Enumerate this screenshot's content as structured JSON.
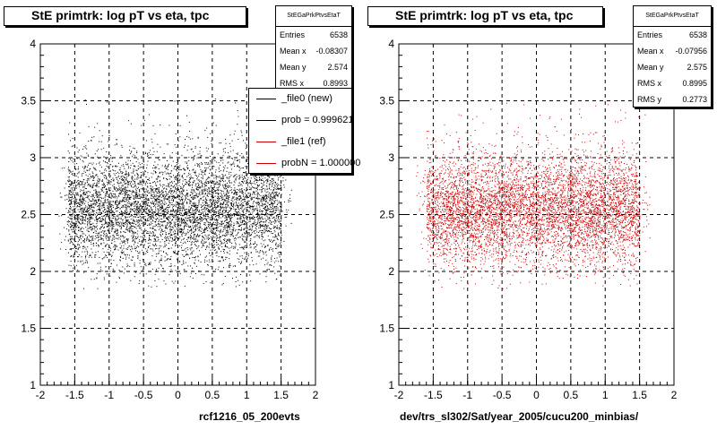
{
  "chart_data": [
    {
      "type": "scatter",
      "title": "StE primtrk: log pT vs eta, tpc",
      "xlabel": "rcf1216_05_200evts",
      "ylabel": "",
      "xlim": [
        -2,
        2
      ],
      "ylim": [
        1,
        4
      ],
      "xticks": [
        "-2",
        "-1.5",
        "-1",
        "-0.5",
        "0",
        "0.5",
        "1",
        "1.5",
        "2"
      ],
      "yticks": [
        "1",
        "1.5",
        "2",
        "2.5",
        "3",
        "3.5",
        "4"
      ],
      "grid": true,
      "color": "#000000",
      "point_cloud": {
        "x_range": [
          -1.75,
          1.65
        ],
        "core_x_range": [
          -1.6,
          1.5
        ],
        "y_core_mean": 2.55,
        "y_spread": 0.35,
        "count": 6538
      },
      "stats": {
        "name": "StEGaPrkPtvsEtaT",
        "entries_label": "Entries",
        "entries": "6538",
        "meanx_label": "Mean x",
        "meanx": "-0.08307",
        "meany_label": "Mean y",
        "meany": "2.574",
        "rmsx_label": "RMS x",
        "rmsx": "0.8993"
      },
      "legend": [
        {
          "label": "_file0 (new)",
          "color": "#000000"
        },
        {
          "label": "prob = 0.999621",
          "color": "#000000"
        },
        {
          "label": "_file1 (ref)",
          "color": "#cc0000"
        },
        {
          "label": "probN = 1.000000",
          "color": "#cc0000"
        }
      ]
    },
    {
      "type": "scatter",
      "title": "StE primtrk: log pT vs eta, tpc",
      "xlabel": "dev/trs_sl302/Sat/year_2005/cucu200_minbias/",
      "ylabel": "",
      "xlim": [
        -2,
        2
      ],
      "ylim": [
        1,
        4
      ],
      "xticks": [
        "-2",
        "-1.5",
        "-1",
        "-0.5",
        "0",
        "0.5",
        "1",
        "1.5",
        "2"
      ],
      "yticks": [
        "1",
        "1.5",
        "2",
        "2.5",
        "3",
        "3.5",
        "4"
      ],
      "grid": true,
      "color": "#cc0000",
      "point_cloud": {
        "x_range": [
          -1.75,
          1.65
        ],
        "core_x_range": [
          -1.6,
          1.5
        ],
        "y_core_mean": 2.55,
        "y_spread": 0.35,
        "count": 6538
      },
      "stats": {
        "name": "StEGaPrkPtvsEtaT",
        "entries_label": "Entries",
        "entries": "6538",
        "meanx_label": "Mean x",
        "meanx": "-0.07956",
        "meany_label": "Mean y",
        "meany": "2.575",
        "rmsx_label": "RMS x",
        "rmsx": "0.8995",
        "rmsy_label": "RMS y",
        "rmsy": "0.2773"
      }
    }
  ]
}
